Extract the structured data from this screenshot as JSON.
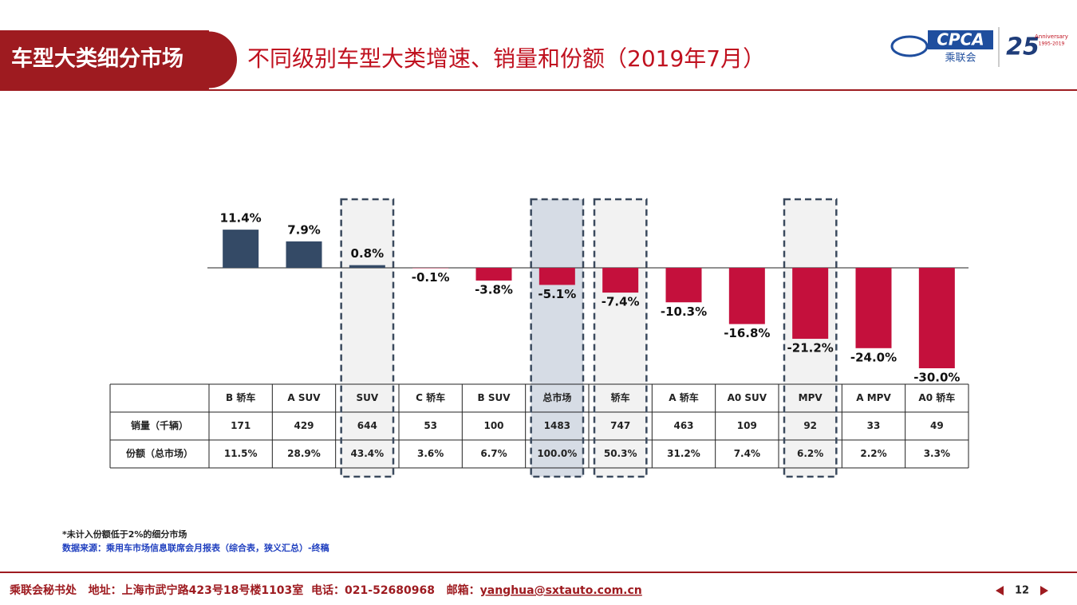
{
  "header": {
    "section": "车型大类细分市场",
    "title": "不同级别车型大类增速、销量和份额（2019年7月）",
    "logo": {
      "org": "CPCA",
      "org_cn": "乘联会",
      "anniversary_number": "25",
      "anniversary": "Anniversary",
      "years": "1995-2019"
    }
  },
  "chart_data": {
    "type": "bar",
    "categories": [
      "B 轿车",
      "A SUV",
      "SUV",
      "C 轿车",
      "B SUV",
      "总市场",
      "轿车",
      "A 轿车",
      "A0 SUV",
      "MPV",
      "A MPV",
      "A0 轿车"
    ],
    "values": [
      11.4,
      7.9,
      0.8,
      -0.1,
      -3.8,
      -5.1,
      -7.4,
      -10.3,
      -16.8,
      -21.2,
      -24.0,
      -30.0
    ],
    "value_labels": [
      "11.4%",
      "7.9%",
      "0.8%",
      "-0.1%",
      "-3.8%",
      "-5.1%",
      "-7.4%",
      "-10.3%",
      "-16.8%",
      "-21.2%",
      "-24.0%",
      "-30.0%"
    ],
    "color": "#344a66",
    "negative_color": "#c4103c"
  },
  "table": {
    "rows": [
      {
        "label": "销量（千辆）",
        "cells": [
          171,
          429,
          644,
          53,
          100,
          1483,
          747,
          463,
          109,
          92,
          33,
          49
        ]
      },
      {
        "label": "份额（总市场）",
        "cells": [
          "11.5%",
          "28.9%",
          "43.4%",
          "3.6%",
          "6.7%",
          "100.0%",
          "50.3%",
          "31.2%",
          "7.4%",
          "6.2%",
          "2.2%",
          "3.3%"
        ]
      }
    ]
  },
  "notes": [
    "*未计入份额低于2%的细分市场",
    "数据来源：乘用车市场信息联席会月报表（综合表，狭义汇总）-终稿"
  ],
  "footer": {
    "text": "乘联会秘书处   地址：上海市武宁路423号18号楼1103室  电话：021-52680968   邮箱：",
    "email": "yanghua@sxtauto.com.cn",
    "page": "12"
  }
}
